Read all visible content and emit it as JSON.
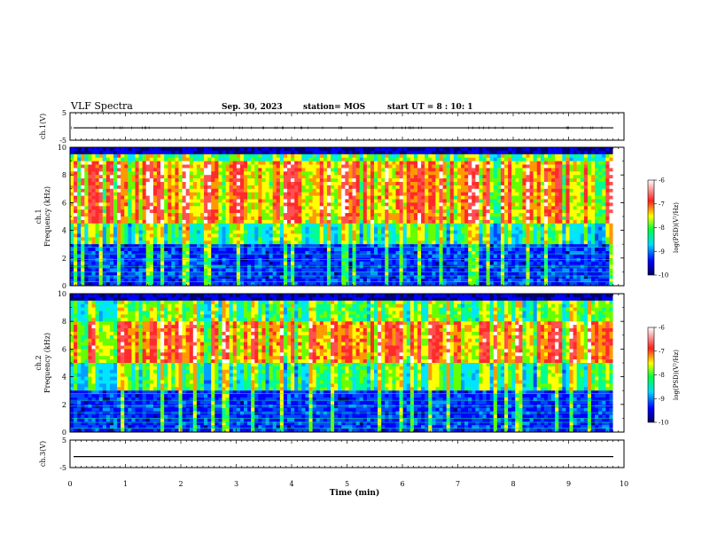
{
  "header": {
    "title": "VLF Spectra",
    "date": "Sep. 30, 2023",
    "station": "station= MOS",
    "start_ut": "start  UT =   8 : 10: 1"
  },
  "chart_data": {
    "type": "heatmap",
    "xlabel": "Time  (min)",
    "xlim": [
      0,
      10
    ],
    "x_ticks": [
      "0",
      "1",
      "2",
      "3",
      "4",
      "5",
      "6",
      "7",
      "8",
      "9",
      "10"
    ],
    "data_end_min": 9.8,
    "panels": [
      {
        "id": "ch1-waveform",
        "type": "line",
        "ylabel": "ch.1(V)",
        "ylim": [
          -5,
          5
        ],
        "y_ticks": [
          "5",
          "-5"
        ],
        "level": -0.5
      },
      {
        "id": "ch1-spectrogram",
        "type": "heatmap",
        "ylabel_line1": "ch.1",
        "ylabel_line2": "Frequency  (kHz)",
        "ylim": [
          0,
          10
        ],
        "y_ticks": [
          "0",
          "2",
          "4",
          "6",
          "8",
          "10"
        ],
        "intense_band_khz": [
          4.5,
          9.0
        ],
        "colorbar": {
          "label": "log(PSD)(V²/Hz)",
          "range": [
            -10,
            -6
          ],
          "ticks": [
            "-6",
            "-7",
            "-8",
            "-9",
            "-10"
          ]
        }
      },
      {
        "id": "ch2-spectrogram",
        "type": "heatmap",
        "ylabel_line1": "ch.2",
        "ylabel_line2": "Frequency  (kHz)",
        "ylim": [
          0,
          10
        ],
        "y_ticks": [
          "0",
          "2",
          "4",
          "6",
          "8",
          "10"
        ],
        "intense_band_khz": [
          5.0,
          8.0
        ],
        "colorbar": {
          "label": "log(PSD)(V²/Hz)",
          "range": [
            -10,
            -6
          ],
          "ticks": [
            "-6",
            "-7",
            "-8",
            "-9",
            "-10"
          ]
        }
      },
      {
        "id": "ch3-waveform",
        "type": "line",
        "ylabel": "ch.3(V)",
        "ylim": [
          -5,
          5
        ],
        "y_ticks": [
          "5",
          "-5"
        ],
        "level": -1.0
      }
    ],
    "colors": {
      "colormap": [
        "#ffffff",
        "#ff2a2a",
        "#ff8a00",
        "#ffff00",
        "#00ff66",
        "#00e5ff",
        "#0040ff",
        "#00007a",
        "#000000"
      ]
    }
  }
}
